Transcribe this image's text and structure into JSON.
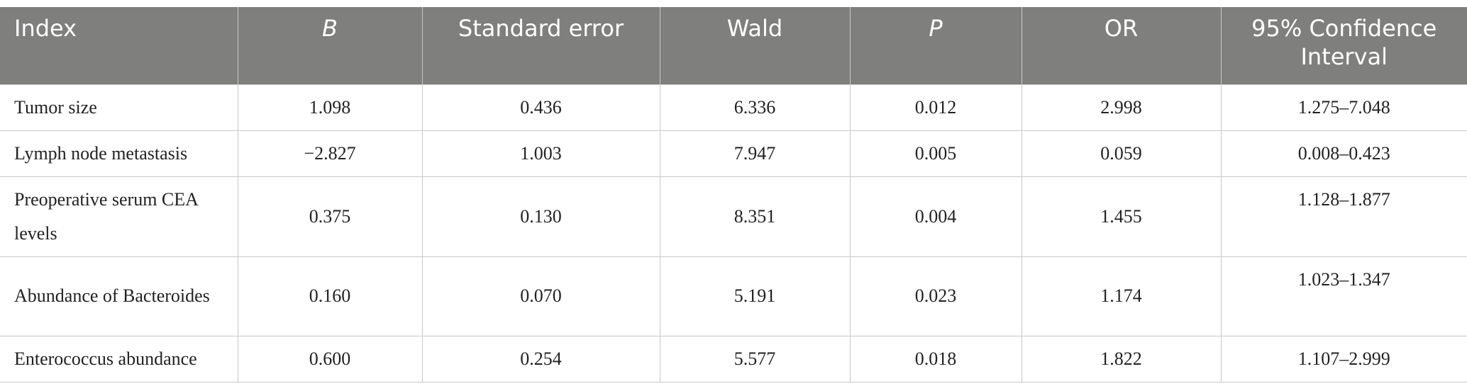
{
  "table": {
    "header": [
      "Index",
      "B",
      "Standard error",
      "Wald",
      "P",
      "OR",
      "95% Confidence Interval"
    ],
    "rows": [
      [
        "Tumor size",
        "1.098",
        "0.436",
        "6.336",
        "0.012",
        "2.998",
        "1.275–7.048"
      ],
      [
        "Lymph node metastasis",
        "−2.827",
        "1.003",
        "7.947",
        "0.005",
        "0.059",
        "0.008–0.423"
      ],
      [
        "Preoperative serum CEA levels",
        "0.375",
        "0.130",
        "8.351",
        "0.004",
        "1.455",
        "1.128–1.877"
      ],
      [
        "Abundance of Bacteroides",
        "0.160",
        "0.070",
        "5.191",
        "0.023",
        "1.174",
        "1.023–1.347"
      ],
      [
        "Enterococcus abundance",
        "0.600",
        "0.254",
        "5.577",
        "0.018",
        "1.822",
        "1.107–2.999"
      ]
    ]
  }
}
